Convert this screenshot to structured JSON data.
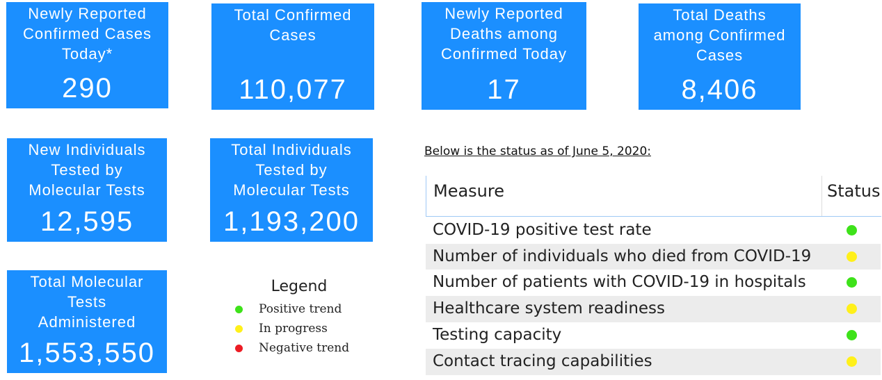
{
  "tiles": [
    {
      "label": [
        "Newly Reported",
        "Confirmed Cases",
        "Today*"
      ],
      "value": "290"
    },
    {
      "label": [
        "Total Confirmed",
        "Cases"
      ],
      "value": "110,077"
    },
    {
      "label": [
        "Newly Reported",
        "Deaths among",
        "Confirmed Today"
      ],
      "value": "17"
    },
    {
      "label": [
        "Total Deaths",
        "among Confirmed",
        "Cases"
      ],
      "value": "8,406"
    },
    {
      "label": [
        "New Individuals",
        "Tested by",
        "Molecular Tests"
      ],
      "value": "12,595"
    },
    {
      "label": [
        "Total Individuals",
        "Tested by",
        "Molecular Tests"
      ],
      "value": "1,193,200"
    },
    {
      "label": [
        "Total Molecular",
        "Tests",
        "Administered"
      ],
      "value": "1,553,550"
    }
  ],
  "tile_color": "#1b8fff",
  "legend": {
    "title": "Legend",
    "items": [
      {
        "label": "Positive trend",
        "color": "#3ee21a"
      },
      {
        "label": "In progress",
        "color": "#fff01a"
      },
      {
        "label": "Negative trend",
        "color": "#ec1c24"
      }
    ]
  },
  "status_note": "Below is the status as of June 5, 2020:",
  "table": {
    "header": [
      "Measure",
      "Status"
    ],
    "rows": [
      {
        "measure": "COVID-19 positive test rate",
        "color": "#3ee21a"
      },
      {
        "measure": "Number of individuals who died from COVID-19",
        "color": "#fff01a"
      },
      {
        "measure": "Number of patients with COVID-19 in hospitals",
        "color": "#3ee21a"
      },
      {
        "measure": "Healthcare system readiness",
        "color": "#fff01a"
      },
      {
        "measure": "Testing capacity",
        "color": "#3ee21a"
      },
      {
        "measure": "Contact tracing capabilities",
        "color": "#fff01a"
      }
    ]
  }
}
